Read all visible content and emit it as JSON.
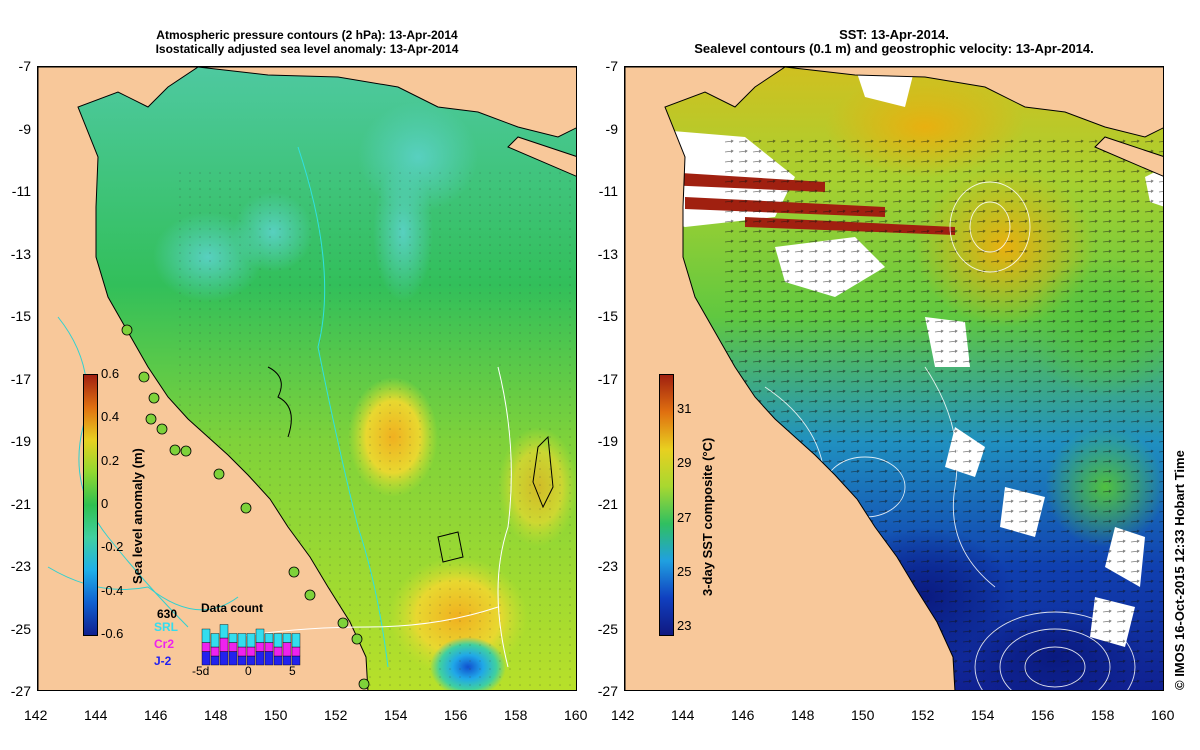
{
  "left_panel": {
    "title_line1": "Atmospheric pressure contours (2 hPa): 13-Apr-2014",
    "title_line2": "Isostatically adjusted sea level anomaly: 13-Apr-2014",
    "colorbar_label": "Sea level anomaly (m)",
    "colorbar_ticks": [
      "0.6",
      "0.4",
      "0.2",
      "0",
      "-0.2",
      "-0.4",
      "-0.6"
    ],
    "colorbar_range": [
      -0.6,
      0.6
    ],
    "inset": {
      "title": "Data count",
      "total": "630",
      "missions": [
        {
          "name": "SRL",
          "color": "#33ddee"
        },
        {
          "name": "Cr2",
          "color": "#ee22ee"
        },
        {
          "name": "J-2",
          "color": "#2222ee"
        }
      ],
      "x_ticks": [
        "-5d",
        "0",
        "5"
      ],
      "counts": [
        {
          "day": -5,
          "srl": 3,
          "cr2": 2,
          "j2": 3
        },
        {
          "day": -4,
          "srl": 3,
          "cr2": 2,
          "j2": 2
        },
        {
          "day": -3,
          "srl": 3,
          "cr2": 3,
          "j2": 3
        },
        {
          "day": -2,
          "srl": 2,
          "cr2": 2,
          "j2": 3
        },
        {
          "day": -1,
          "srl": 3,
          "cr2": 2,
          "j2": 2
        },
        {
          "day": 0,
          "srl": 3,
          "cr2": 2,
          "j2": 2
        },
        {
          "day": 1,
          "srl": 3,
          "cr2": 2,
          "j2": 3
        },
        {
          "day": 2,
          "srl": 2,
          "cr2": 2,
          "j2": 3
        },
        {
          "day": 3,
          "srl": 3,
          "cr2": 2,
          "j2": 2
        },
        {
          "day": 4,
          "srl": 2,
          "cr2": 3,
          "j2": 2
        },
        {
          "day": 5,
          "srl": 3,
          "cr2": 2,
          "j2": 2
        }
      ]
    }
  },
  "right_panel": {
    "title_line1": "SST: 13-Apr-2014.",
    "title_line2": "Sealevel contours (0.1 m) and geostrophic velocity: 13-Apr-2014.",
    "colorbar_label": "3-day SST composite (°C)",
    "colorbar_ticks": [
      "31",
      "29",
      "27",
      "25",
      "23"
    ],
    "colorbar_range": [
      22.7,
      32.3
    ]
  },
  "axes": {
    "lon_ticks": [
      "142",
      "144",
      "146",
      "148",
      "150",
      "152",
      "154",
      "156",
      "158",
      "160"
    ],
    "lat_ticks": [
      "-7",
      "-9",
      "-11",
      "-13",
      "-15",
      "-17",
      "-19",
      "-21",
      "-23",
      "-25",
      "-27"
    ]
  },
  "credit": "© IMOS 16-Oct-2015 12:33 Hobart Time",
  "colors": {
    "land": "#f8c89a",
    "ocean_mid": "#3ac240",
    "sla_low": "#1060d0",
    "sla_high": "#f0c020",
    "sst_cold": "#102080",
    "sst_warm": "#d8b800",
    "cloud": "#ffffff"
  }
}
